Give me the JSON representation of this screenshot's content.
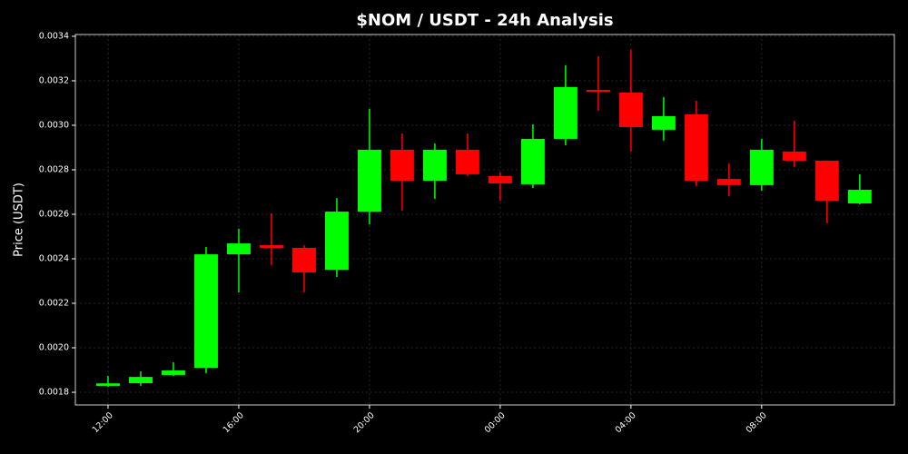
{
  "chart_data": {
    "type": "candlestick",
    "title": "$NOM / USDT - 24h Analysis",
    "y_label": "Price (USDT)",
    "x": [
      0,
      1,
      2,
      3,
      4,
      5,
      6,
      7,
      8,
      9,
      10,
      11,
      12,
      13,
      14,
      15,
      16,
      17,
      18,
      19,
      20,
      21,
      22,
      23
    ],
    "open": [
      0.001829,
      0.001841,
      0.001878,
      0.00191,
      0.00242,
      0.002461,
      0.002449,
      0.002351,
      0.002612,
      0.00289,
      0.002751,
      0.00289,
      0.002772,
      0.002735,
      0.002939,
      0.003159,
      0.003147,
      0.00298,
      0.003049,
      0.002759,
      0.002731,
      0.002882,
      0.002841,
      0.002649
    ],
    "high": [
      0.001873,
      0.001894,
      0.001935,
      0.002453,
      0.002535,
      0.002604,
      0.002461,
      0.002673,
      0.003074,
      0.002963,
      0.002918,
      0.002963,
      0.002788,
      0.003004,
      0.00327,
      0.00331,
      0.003339,
      0.003127,
      0.00311,
      0.002829,
      0.002939,
      0.00302,
      0.002841,
      0.00278
    ],
    "low": [
      0.001824,
      0.001829,
      0.001873,
      0.001886,
      0.002249,
      0.002371,
      0.002249,
      0.002318,
      0.002555,
      0.002616,
      0.002669,
      0.002772,
      0.002661,
      0.002718,
      0.00291,
      0.003065,
      0.002882,
      0.002931,
      0.002727,
      0.002682,
      0.002706,
      0.002812,
      0.002559,
      0.002645
    ],
    "close": [
      0.00184,
      0.001869,
      0.001898,
      0.00242,
      0.002469,
      0.002449,
      0.002339,
      0.002612,
      0.00289,
      0.002751,
      0.00289,
      0.00278,
      0.002739,
      0.002939,
      0.003172,
      0.003151,
      0.002992,
      0.003041,
      0.002751,
      0.002731,
      0.00289,
      0.002841,
      0.002661,
      0.00271
    ],
    "up_color": "#00ff00",
    "down_color": "#ff0000",
    "xlim": [
      -1,
      24.06
    ],
    "xticks": [
      {
        "value": 0,
        "label": "12:00"
      },
      {
        "value": 4,
        "label": "16:00"
      },
      {
        "value": 8,
        "label": "20:00"
      },
      {
        "value": 12,
        "label": "00:00"
      },
      {
        "value": 16,
        "label": "04:00"
      },
      {
        "value": 20,
        "label": "08:00"
      }
    ],
    "ylim": [
      0.001743,
      0.003408
    ],
    "yticks": [
      0.0018,
      {
        "value": 0.002,
        "label": "0.0020"
      },
      0.0022,
      0.0024,
      0.0026,
      0.0028,
      {
        "value": 0.003,
        "label": "0.0030"
      },
      0.0032,
      0.0034
    ],
    "grid": true
  }
}
